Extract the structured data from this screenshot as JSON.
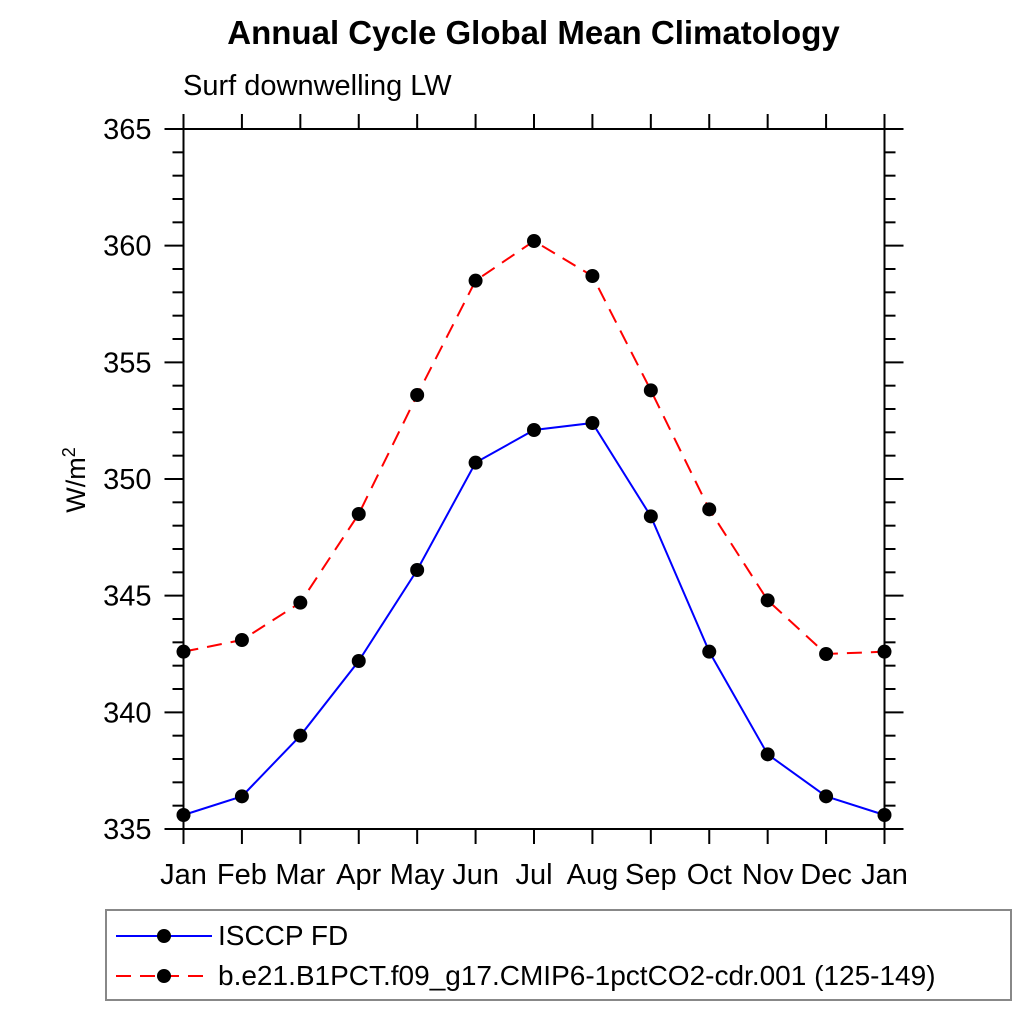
{
  "chart_data": {
    "type": "line",
    "title": "Annual Cycle Global Mean Climatology",
    "subtitle": "Surf downwelling LW",
    "ylabel": "W/m²",
    "ylabel_base": "W/m",
    "ylabel_exponent": "2",
    "xlabel": "",
    "categories": [
      "Jan",
      "Feb",
      "Mar",
      "Apr",
      "May",
      "Jun",
      "Jul",
      "Aug",
      "Sep",
      "Oct",
      "Nov",
      "Dec",
      "Jan"
    ],
    "ylim": [
      335,
      365
    ],
    "ytick_major_interval": 5,
    "ytick_minor_interval": 1,
    "ytick_labels": [
      "335",
      "340",
      "345",
      "350",
      "355",
      "360",
      "365"
    ],
    "grid": false,
    "legend_position": "bottom-left-outside",
    "axis_color": "#000000",
    "marker_color": "#000000",
    "series": [
      {
        "name": "ISCCP FD",
        "color": "#0000ff",
        "line_style": "solid",
        "marker": "filled-circle",
        "values": [
          335.6,
          336.4,
          339.0,
          342.2,
          346.1,
          350.7,
          352.1,
          352.4,
          348.4,
          342.6,
          338.2,
          336.4,
          335.6
        ]
      },
      {
        "name": "b.e21.B1PCT.f09_g17.CMIP6-1pctCO2-cdr.001 (125-149)",
        "color": "#ff0000",
        "line_style": "dashed",
        "marker": "filled-circle",
        "values": [
          342.6,
          343.1,
          344.7,
          348.5,
          353.6,
          358.5,
          360.2,
          358.7,
          353.8,
          348.7,
          344.8,
          342.5,
          342.6
        ]
      }
    ]
  }
}
